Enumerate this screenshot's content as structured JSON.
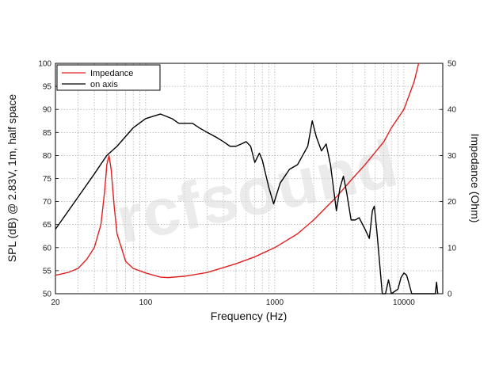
{
  "chart_data": {
    "type": "line",
    "xscale": "log",
    "xlim": [
      20,
      20000
    ],
    "ylim": [
      50,
      100
    ],
    "y2lim": [
      0,
      50
    ],
    "xlabel": "Frequency (Hz)",
    "ylabel": "SPL (dB) @ 2.83V, 1m, half space",
    "y2label": "Impedance (Ohm)",
    "x_tick_labels": [
      20,
      100,
      1000,
      10000
    ],
    "y_ticks": [
      50,
      55,
      60,
      65,
      70,
      75,
      80,
      85,
      90,
      95,
      100
    ],
    "y2_ticks": [
      0,
      10,
      20,
      30,
      40,
      50
    ],
    "grid": true,
    "legend_position": "top-left",
    "watermark": "rcfsound",
    "series": [
      {
        "name": "Impedance",
        "axis": "right",
        "color": "#e02020",
        "points": [
          [
            20,
            4
          ],
          [
            25,
            4.6
          ],
          [
            30,
            5.5
          ],
          [
            35,
            7.5
          ],
          [
            40,
            10
          ],
          [
            45,
            15
          ],
          [
            48,
            22
          ],
          [
            50,
            28
          ],
          [
            52,
            30
          ],
          [
            54,
            27
          ],
          [
            57,
            19
          ],
          [
            60,
            13
          ],
          [
            70,
            7
          ],
          [
            80,
            5.5
          ],
          [
            100,
            4.5
          ],
          [
            130,
            3.6
          ],
          [
            150,
            3.5
          ],
          [
            200,
            3.8
          ],
          [
            300,
            4.6
          ],
          [
            500,
            6.5
          ],
          [
            700,
            8
          ],
          [
            1000,
            10
          ],
          [
            1500,
            13
          ],
          [
            2000,
            16
          ],
          [
            3000,
            21
          ],
          [
            4000,
            25
          ],
          [
            5000,
            28
          ],
          [
            7000,
            33
          ],
          [
            8000,
            36
          ],
          [
            10000,
            40
          ],
          [
            12000,
            46
          ],
          [
            13000,
            50
          ]
        ]
      },
      {
        "name": "on axis",
        "axis": "left",
        "color": "#000000",
        "points": [
          [
            20,
            64
          ],
          [
            30,
            71
          ],
          [
            40,
            76
          ],
          [
            50,
            80
          ],
          [
            60,
            82
          ],
          [
            80,
            86
          ],
          [
            100,
            88
          ],
          [
            130,
            89
          ],
          [
            160,
            88
          ],
          [
            180,
            87
          ],
          [
            200,
            87
          ],
          [
            230,
            87
          ],
          [
            260,
            86
          ],
          [
            300,
            85
          ],
          [
            350,
            84
          ],
          [
            400,
            83
          ],
          [
            450,
            82
          ],
          [
            500,
            82
          ],
          [
            550,
            82.5
          ],
          [
            600,
            83
          ],
          [
            650,
            82
          ],
          [
            700,
            78.5
          ],
          [
            760,
            80.5
          ],
          [
            800,
            79
          ],
          [
            900,
            73
          ],
          [
            980,
            69.5
          ],
          [
            1100,
            74
          ],
          [
            1300,
            77
          ],
          [
            1500,
            78
          ],
          [
            1800,
            82
          ],
          [
            1950,
            87.5
          ],
          [
            2100,
            84
          ],
          [
            2300,
            81
          ],
          [
            2500,
            82.5
          ],
          [
            2700,
            78
          ],
          [
            3000,
            68
          ],
          [
            3200,
            73
          ],
          [
            3400,
            75.5
          ],
          [
            3600,
            72
          ],
          [
            3900,
            66
          ],
          [
            4200,
            66
          ],
          [
            4500,
            66.5
          ],
          [
            5000,
            64
          ],
          [
            5400,
            62
          ],
          [
            5700,
            68
          ],
          [
            5900,
            69
          ],
          [
            6200,
            63
          ],
          [
            6800,
            50
          ],
          [
            7200,
            50
          ],
          [
            7600,
            53
          ],
          [
            8000,
            50
          ],
          [
            9000,
            51
          ],
          [
            9500,
            53.5
          ],
          [
            10000,
            54.5
          ],
          [
            10500,
            54
          ],
          [
            11000,
            52
          ],
          [
            11500,
            50
          ],
          [
            17500,
            50
          ],
          [
            17900,
            52.5
          ],
          [
            18300,
            50
          ]
        ]
      }
    ]
  }
}
